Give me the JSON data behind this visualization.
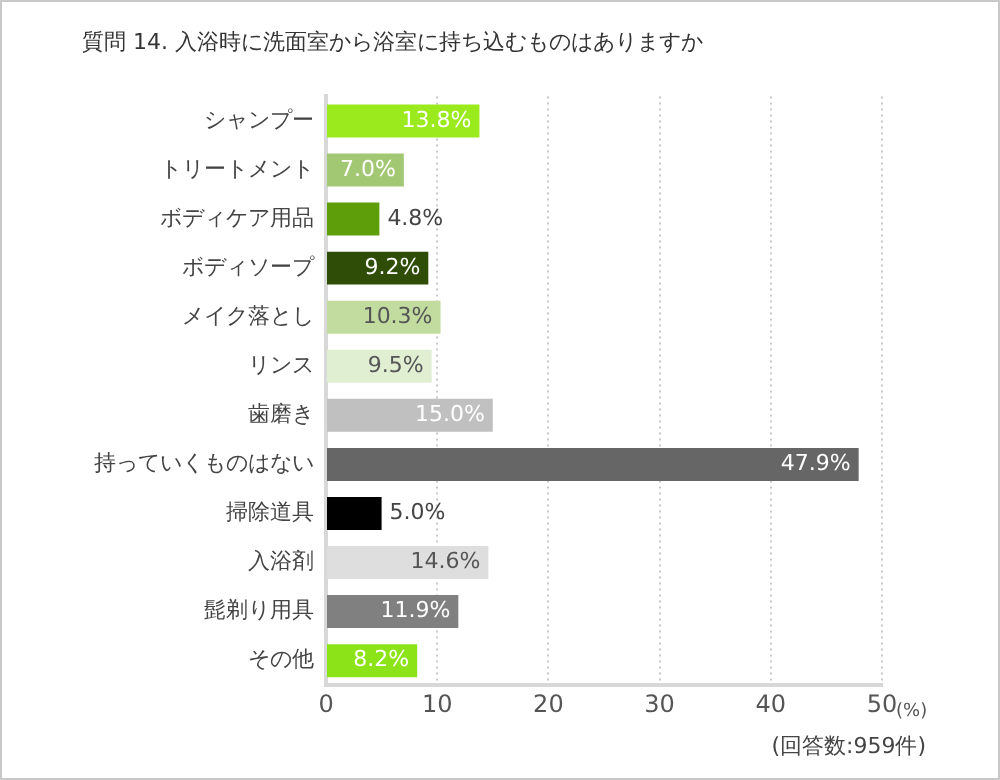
{
  "chart_data": {
    "type": "bar",
    "orientation": "horizontal",
    "title": "質問 14. 入浴時に洗面室から浴室に持ち込むものはありますか",
    "xlabel": "(%)",
    "annotations": [
      "(回答数:959件)"
    ],
    "categories": [
      "シャンプー",
      "トリートメント",
      "ボディケア用品",
      "ボディソープ",
      "メイク落とし",
      "リンス",
      "歯磨き",
      "持っていくものはない",
      "掃除道具",
      "入浴剤",
      "髭剃り用具",
      "その他"
    ],
    "values": [
      13.8,
      7.0,
      4.8,
      9.2,
      10.3,
      9.5,
      15.0,
      47.9,
      5.0,
      14.6,
      11.9,
      8.2
    ],
    "colors": [
      "#9aea1e",
      "#a3c873",
      "#5e9e0a",
      "#2f4d06",
      "#c2dca0",
      "#e0eed2",
      "#c0c0c0",
      "#666666",
      "#000000",
      "#dedede",
      "#808080",
      "#8ce418"
    ],
    "value_labels": [
      "13.8%",
      "7.0%",
      "4.8%",
      "9.2%",
      "10.3%",
      "9.5%",
      "15.0%",
      "47.9%",
      "5.0%",
      "14.6%",
      "11.9%",
      "8.2%"
    ],
    "xlim": [
      0,
      50
    ],
    "xticks": [
      0,
      10,
      20,
      30,
      40,
      50
    ],
    "grid": "x",
    "legend": false
  }
}
